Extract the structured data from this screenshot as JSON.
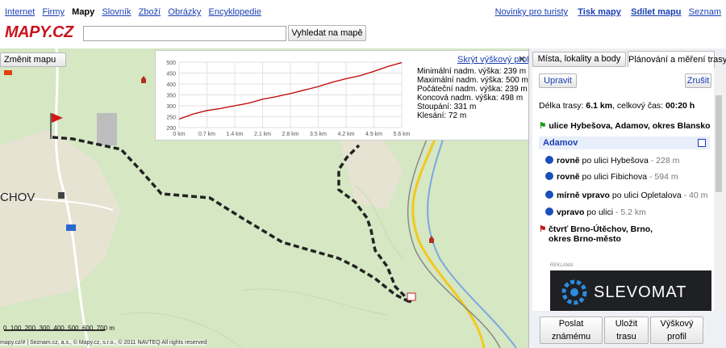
{
  "header": {
    "links": [
      "Internet",
      "Firmy",
      "Mapy",
      "Slovník",
      "Zboží",
      "Obrázky",
      "Encyklopedie"
    ],
    "right_links": [
      "Novinky pro turisty",
      "Tisk mapy",
      "Sdílet mapu",
      "Seznam"
    ],
    "logo": "MAPY.CZ",
    "search_button": "Vyhledat na mapě"
  },
  "map": {
    "change_map": "Změnit mapu",
    "place_label": "CHOV",
    "scale_labels": [
      "0",
      "100",
      "200",
      "300",
      "400",
      "500",
      "600",
      "700 m"
    ],
    "copyright": "mapy.cz/# | Seznam.cz, a.s., © Mapy.cz, s.r.o., © 2011 NAVTEQ All rights reserved"
  },
  "elevation_profile": {
    "hide_link": "Skrýt výškový profil",
    "stats": [
      "Minimální nadm. výška: 239 m",
      "Maximální nadm. výška: 500 m",
      "Počáteční nadm. výška: 239 m",
      "Koncová nadm. výška: 498 m",
      "Stoupání: 331 m",
      "Klesání: 72 m"
    ],
    "chart": {
      "type": "line",
      "x": [
        0,
        0.35,
        0.7,
        1.05,
        1.4,
        1.75,
        2.1,
        2.45,
        2.8,
        3.15,
        3.5,
        3.85,
        4.2,
        4.55,
        4.9,
        5.25,
        5.6
      ],
      "values": [
        239,
        262,
        278,
        288,
        300,
        312,
        330,
        342,
        356,
        372,
        388,
        408,
        424,
        438,
        458,
        480,
        498
      ],
      "color": "#c00000",
      "xlim": [
        0,
        5.6
      ],
      "xticks": [
        {
          "value": 0,
          "label": "0 km"
        },
        {
          "value": 0.7,
          "label": "0.7 km"
        },
        {
          "value": 1.4,
          "label": "1.4 km"
        },
        {
          "value": 2.1,
          "label": "2.1 km"
        },
        {
          "value": 2.8,
          "label": "2.8 km"
        },
        {
          "value": 3.5,
          "label": "3.5 km"
        },
        {
          "value": 4.2,
          "label": "4.2 km"
        },
        {
          "value": 4.9,
          "label": "4.9 km"
        },
        {
          "value": 5.6,
          "label": "5.6 km"
        }
      ],
      "ylim": [
        200,
        500
      ],
      "yticks": [
        200,
        250,
        300,
        350,
        400,
        450,
        500
      ],
      "grid": true
    }
  },
  "panel": {
    "tabs": [
      "Místa, lokality a body",
      "Plánování a měření trasy"
    ],
    "edit_button": "Upravit",
    "cancel_button": "Zrušit",
    "summary": {
      "length_label": "Délka trasy:",
      "length": "6.1 km",
      "time_label": ", celkový čas:",
      "time": "00:20 h"
    },
    "start": "ulice Hybešova, Adamov, okres Blansko",
    "section": "Adamov",
    "steps": [
      {
        "direction": "rovně",
        "text": "po ulici Hybešova",
        "distance": "- 228 m"
      },
      {
        "direction": "rovně",
        "text": "po ulici Fibichova",
        "distance": "- 594 m"
      },
      {
        "direction": "mírně vpravo",
        "text": "po ulici Opletalova",
        "distance": "- 40 m"
      },
      {
        "direction": "vpravo",
        "text": "po ulici",
        "distance": "- 5.2 km"
      }
    ],
    "end": "čtvrť Brno-Útěchov, Brno, okres Brno-město",
    "ad_label": "REKLAMA",
    "ad_text": "SLEVOMAT",
    "buttons": [
      "Poslat známému",
      "Uložit trasu",
      "Výškový profil"
    ]
  }
}
